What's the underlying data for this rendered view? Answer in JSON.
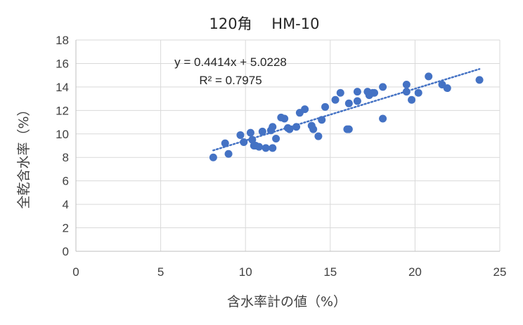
{
  "chart_data": {
    "type": "scatter",
    "title": "120角　 HM-10",
    "xlabel": "含水率計の値（%）",
    "ylabel": "全乾含水率（%）",
    "xlim": [
      0,
      25
    ],
    "ylim": [
      0,
      18
    ],
    "xticks": [
      0,
      5,
      10,
      15,
      20,
      25
    ],
    "yticks": [
      0,
      2,
      4,
      6,
      8,
      10,
      12,
      14,
      16,
      18
    ],
    "grid": true,
    "legend": "none",
    "marker_color": "#4472C4",
    "trendline": {
      "slope": 0.4414,
      "intercept": 5.0228,
      "x_range": [
        8.1,
        23.8
      ],
      "equation": "y = 0.4414x + 5.0228",
      "r_squared": "R² = 0.7975"
    },
    "points": [
      [
        8.1,
        8.0
      ],
      [
        8.8,
        9.2
      ],
      [
        9.0,
        8.3
      ],
      [
        9.7,
        9.9
      ],
      [
        9.9,
        9.3
      ],
      [
        10.3,
        10.1
      ],
      [
        10.4,
        9.5
      ],
      [
        10.5,
        9.0
      ],
      [
        10.6,
        9.0
      ],
      [
        10.8,
        8.9
      ],
      [
        11.0,
        10.2
      ],
      [
        11.2,
        8.8
      ],
      [
        11.5,
        10.3
      ],
      [
        11.6,
        10.6
      ],
      [
        11.6,
        8.8
      ],
      [
        11.8,
        9.6
      ],
      [
        12.1,
        11.4
      ],
      [
        12.3,
        11.3
      ],
      [
        12.5,
        10.5
      ],
      [
        12.6,
        10.4
      ],
      [
        13.0,
        10.6
      ],
      [
        13.2,
        11.8
      ],
      [
        13.5,
        12.1
      ],
      [
        13.9,
        10.7
      ],
      [
        14.0,
        10.4
      ],
      [
        14.3,
        9.8
      ],
      [
        14.5,
        11.2
      ],
      [
        14.7,
        12.3
      ],
      [
        15.3,
        12.9
      ],
      [
        15.6,
        13.5
      ],
      [
        16.0,
        10.4
      ],
      [
        16.1,
        10.4
      ],
      [
        16.1,
        12.6
      ],
      [
        16.6,
        12.8
      ],
      [
        16.6,
        13.6
      ],
      [
        17.2,
        13.6
      ],
      [
        17.3,
        13.3
      ],
      [
        17.5,
        13.5
      ],
      [
        17.6,
        13.5
      ],
      [
        18.1,
        14.0
      ],
      [
        18.1,
        11.3
      ],
      [
        19.5,
        14.2
      ],
      [
        19.5,
        13.6
      ],
      [
        19.8,
        12.9
      ],
      [
        20.2,
        13.5
      ],
      [
        20.8,
        14.9
      ],
      [
        21.6,
        14.2
      ],
      [
        21.9,
        13.9
      ],
      [
        23.8,
        14.6
      ]
    ]
  }
}
